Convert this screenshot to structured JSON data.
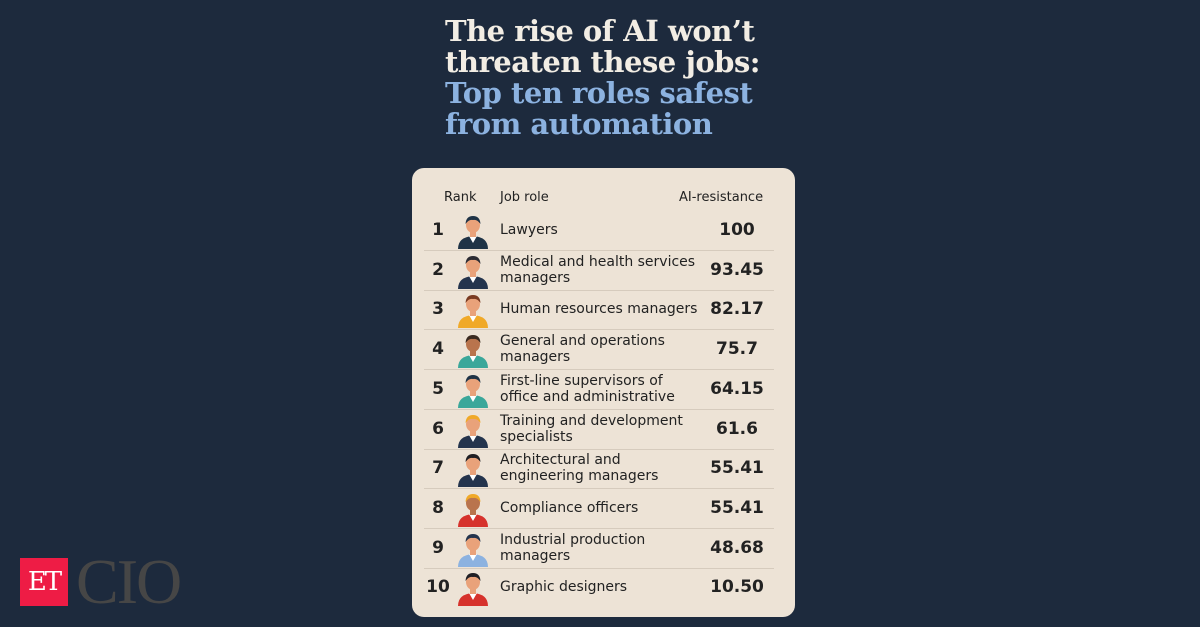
{
  "title": {
    "line1": "The rise of AI won’t",
    "line2": "threaten these jobs:",
    "line3": "Top ten roles safest",
    "line4": "from automation"
  },
  "colors": {
    "background": "#1d2a3d",
    "card": "#ede3d6",
    "title_white": "#f2ede4",
    "title_blue": "#8cb2e0",
    "logo_red": "#ee1c45"
  },
  "table": {
    "headers": {
      "rank": "Rank",
      "role": "Job role",
      "score": "AI-resistance"
    },
    "rows": [
      {
        "rank": "1",
        "role": "Lawyers",
        "score": "100",
        "avatar": "woman-glasses-icon",
        "hair": "#1f3346",
        "shirt": "#1f3346",
        "skin": "#e9a27a"
      },
      {
        "rank": "2",
        "role": "Medical and health services managers",
        "score": "93.45",
        "avatar": "man-suit-icon",
        "hair": "#2b2b33",
        "shirt": "#24344d",
        "skin": "#e9a27a"
      },
      {
        "rank": "3",
        "role": "Human resources managers",
        "score": "82.17",
        "avatar": "woman-icon",
        "hair": "#7a3b22",
        "shirt": "#f0a928",
        "skin": "#e9a27a"
      },
      {
        "rank": "4",
        "role": "General and operations managers",
        "score": "75.7",
        "avatar": "man-beard-icon",
        "hair": "#3a2a20",
        "shirt": "#3aa79a",
        "skin": "#b9744d"
      },
      {
        "rank": "5",
        "role": "First-line supervisors of office and administrative",
        "score": "64.15",
        "avatar": "headset-person-icon",
        "hair": "#1f3346",
        "shirt": "#3aa79a",
        "skin": "#e9a27a"
      },
      {
        "rank": "6",
        "role": "Training and development specialists",
        "score": "61.6",
        "avatar": "hardhat-man-icon",
        "hair": "#f0a928",
        "shirt": "#24344d",
        "skin": "#e9a27a"
      },
      {
        "rank": "7",
        "role": "Architectural and engineering managers",
        "score": "55.41",
        "avatar": "man-beard-suit-icon",
        "hair": "#1f1f24",
        "shirt": "#24344d",
        "skin": "#e9a27a"
      },
      {
        "rank": "8",
        "role": "Compliance officers",
        "score": "55.41",
        "avatar": "hardhat-worker-icon",
        "hair": "#f0a928",
        "shirt": "#d6322c",
        "skin": "#b9744d"
      },
      {
        "rank": "9",
        "role": "Industrial production managers",
        "score": "48.68",
        "avatar": "man-icon",
        "hair": "#24344d",
        "shirt": "#8cb2e0",
        "skin": "#e9a27a"
      },
      {
        "rank": "10",
        "role": "Graphic designers",
        "score": "10.50",
        "avatar": "woman-dark-hair-icon",
        "hair": "#1f1f24",
        "shirt": "#d6322c",
        "skin": "#e9a27a"
      }
    ]
  },
  "logo": {
    "et": "ET",
    "cio": "CIO"
  }
}
